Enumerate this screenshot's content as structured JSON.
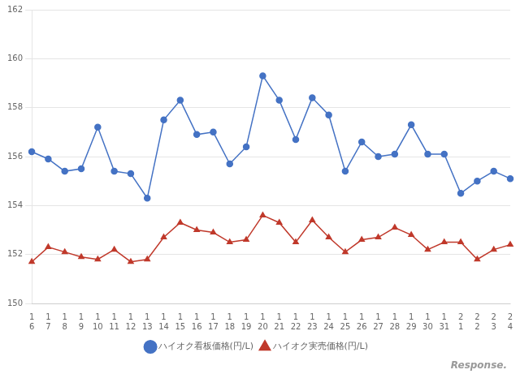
{
  "chart_data": {
    "type": "line",
    "categories": [
      "1\n6",
      "1\n7",
      "1\n8",
      "1\n9",
      "1\n10",
      "1\n11",
      "1\n12",
      "1\n13",
      "1\n14",
      "1\n15",
      "1\n16",
      "1\n17",
      "1\n18",
      "1\n19",
      "1\n20",
      "1\n21",
      "1\n22",
      "1\n23",
      "1\n24",
      "1\n25",
      "1\n26",
      "1\n27",
      "1\n28",
      "1\n29",
      "1\n30",
      "1\n31",
      "2\n1",
      "2\n2",
      "2\n3",
      "2\n4"
    ],
    "series": [
      {
        "name": "ハイオク看板価格(円/L)",
        "color": "#4472C4",
        "marker": "circle",
        "values": [
          156.2,
          155.9,
          155.4,
          155.5,
          157.2,
          155.4,
          155.3,
          154.3,
          157.5,
          158.3,
          156.9,
          157.0,
          155.7,
          156.4,
          159.3,
          158.3,
          156.7,
          158.4,
          157.7,
          155.4,
          156.6,
          156.0,
          156.1,
          157.3,
          156.1,
          156.1,
          154.5,
          155.0,
          155.4,
          155.1
        ]
      },
      {
        "name": "ハイオク実売価格(円/L)",
        "color": "#C0392B",
        "marker": "triangle",
        "values": [
          151.7,
          152.3,
          152.1,
          151.9,
          151.8,
          152.2,
          151.7,
          151.8,
          152.7,
          153.3,
          153.0,
          152.9,
          152.5,
          152.6,
          153.6,
          153.3,
          152.5,
          153.4,
          152.7,
          152.1,
          152.6,
          152.7,
          153.1,
          152.8,
          152.2,
          152.5,
          152.5,
          151.8,
          152.2,
          152.4
        ]
      }
    ],
    "ylim": [
      150,
      162
    ],
    "yticks": [
      150,
      152,
      154,
      156,
      158,
      160,
      162
    ],
    "grid": "y",
    "legend": "bottom",
    "annotations": [
      "Response."
    ]
  }
}
